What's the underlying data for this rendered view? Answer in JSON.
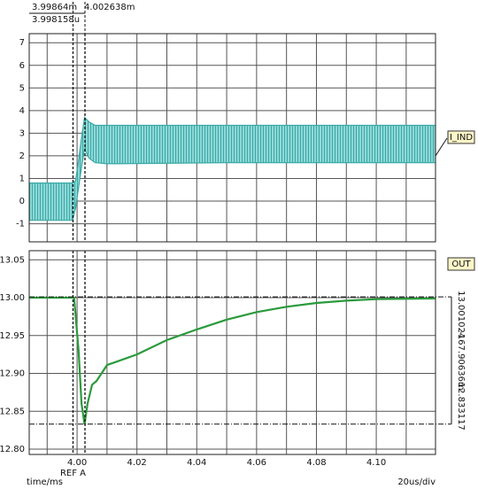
{
  "x_axis": {
    "label": "time/ms",
    "scale_label": "20us/div",
    "ref_label": "REF A",
    "xlim": [
      3.984,
      4.1198
    ],
    "xticks": [
      {
        "value": 4.0,
        "label": "4.00"
      },
      4.02,
      4.04,
      4.06,
      4.08,
      {
        "value": 4.1,
        "label": "4.10"
      }
    ],
    "xminor": [
      3.99,
      4.01,
      4.03,
      4.05,
      4.07,
      4.09,
      4.11
    ],
    "cursors": [
      {
        "value": 3.99864,
        "label": "3.99864m"
      },
      {
        "value": 4.002638,
        "label": "4.002638m"
      }
    ],
    "cursor_delta": "3.998158u"
  },
  "chart_data": [
    {
      "type": "band",
      "ylim": [
        -1.8,
        7.4
      ],
      "yticks": [
        -1,
        0,
        1,
        2,
        3,
        4,
        5,
        6,
        7
      ],
      "grid": true,
      "series": [
        {
          "name": "I_IND",
          "color": "#3aa9a6",
          "x": [
            3.984,
            3.9985,
            3.9995,
            4.0005,
            4.0015,
            4.0025,
            4.004,
            4.006,
            4.01,
            4.05,
            4.1198
          ],
          "upper": [
            0.8,
            0.8,
            0.9,
            1.8,
            2.8,
            3.7,
            3.5,
            3.35,
            3.35,
            3.35,
            3.35
          ],
          "lower": [
            -0.85,
            -0.85,
            -0.3,
            0.6,
            1.5,
            2.3,
            1.9,
            1.7,
            1.65,
            1.7,
            1.7
          ]
        }
      ],
      "tag_value": 2
    },
    {
      "type": "line",
      "ylim": [
        12.793,
        13.062
      ],
      "yticks": [
        {
          "value": 12.8,
          "label": "12.80"
        },
        12.85,
        {
          "value": 12.9,
          "label": "12.90"
        },
        12.95,
        {
          "value": 13.0,
          "label": "13.00"
        },
        13.05
      ],
      "grid": true,
      "series": [
        {
          "name": "OUT",
          "color": "#2a9a3c",
          "x": [
            3.984,
            3.999,
            4.0005,
            4.0015,
            4.0025,
            4.0035,
            4.005,
            4.0065,
            4.01,
            4.02,
            4.03,
            4.04,
            4.05,
            4.06,
            4.07,
            4.08,
            4.09,
            4.1,
            4.1198
          ],
          "values": [
            13.0,
            13.0,
            12.93,
            12.86,
            12.833,
            12.86,
            12.885,
            12.89,
            12.911,
            12.925,
            12.944,
            12.958,
            12.971,
            12.981,
            12.988,
            12.993,
            12.996,
            12.998,
            12.999
          ]
        }
      ],
      "hcursors": [
        13.001024,
        12.833117
      ],
      "hcursor_delta": "-167.90636m"
    }
  ]
}
